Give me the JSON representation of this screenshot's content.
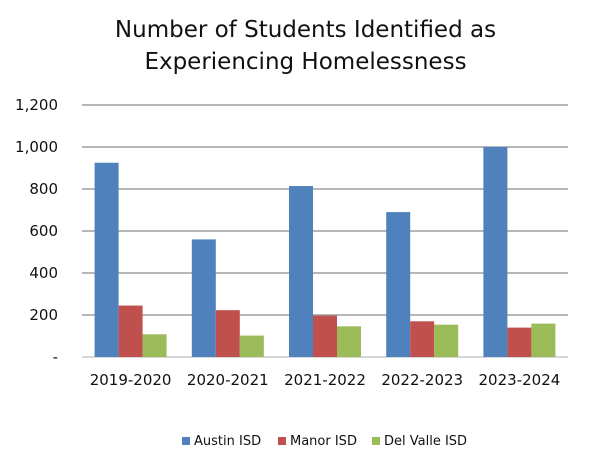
{
  "chart_data": {
    "type": "bar",
    "title_line1": "Number of Students Identified as",
    "title_line2": "Experiencing Homelessness",
    "categories": [
      "2019-2020",
      "2020-2021",
      "2021-2022",
      "2022-2023",
      "2023-2024"
    ],
    "series": [
      {
        "name": "Austin ISD",
        "color": "#4F81BD",
        "values": [
          925,
          560,
          814,
          690,
          1000
        ]
      },
      {
        "name": "Manor ISD",
        "color": "#C0504D",
        "values": [
          245,
          223,
          197,
          170,
          140
        ]
      },
      {
        "name": "Del Valle ISD",
        "color": "#9BBB59",
        "values": [
          108,
          102,
          146,
          154,
          159
        ]
      }
    ],
    "ylim": [
      0,
      1200
    ],
    "yticks": [
      0,
      200,
      400,
      600,
      800,
      1000,
      1200
    ],
    "ytick_labels": [
      "-",
      "200",
      "400",
      "600",
      "800",
      "1,000",
      "1,200"
    ],
    "grid": true,
    "legend": "bottom"
  }
}
